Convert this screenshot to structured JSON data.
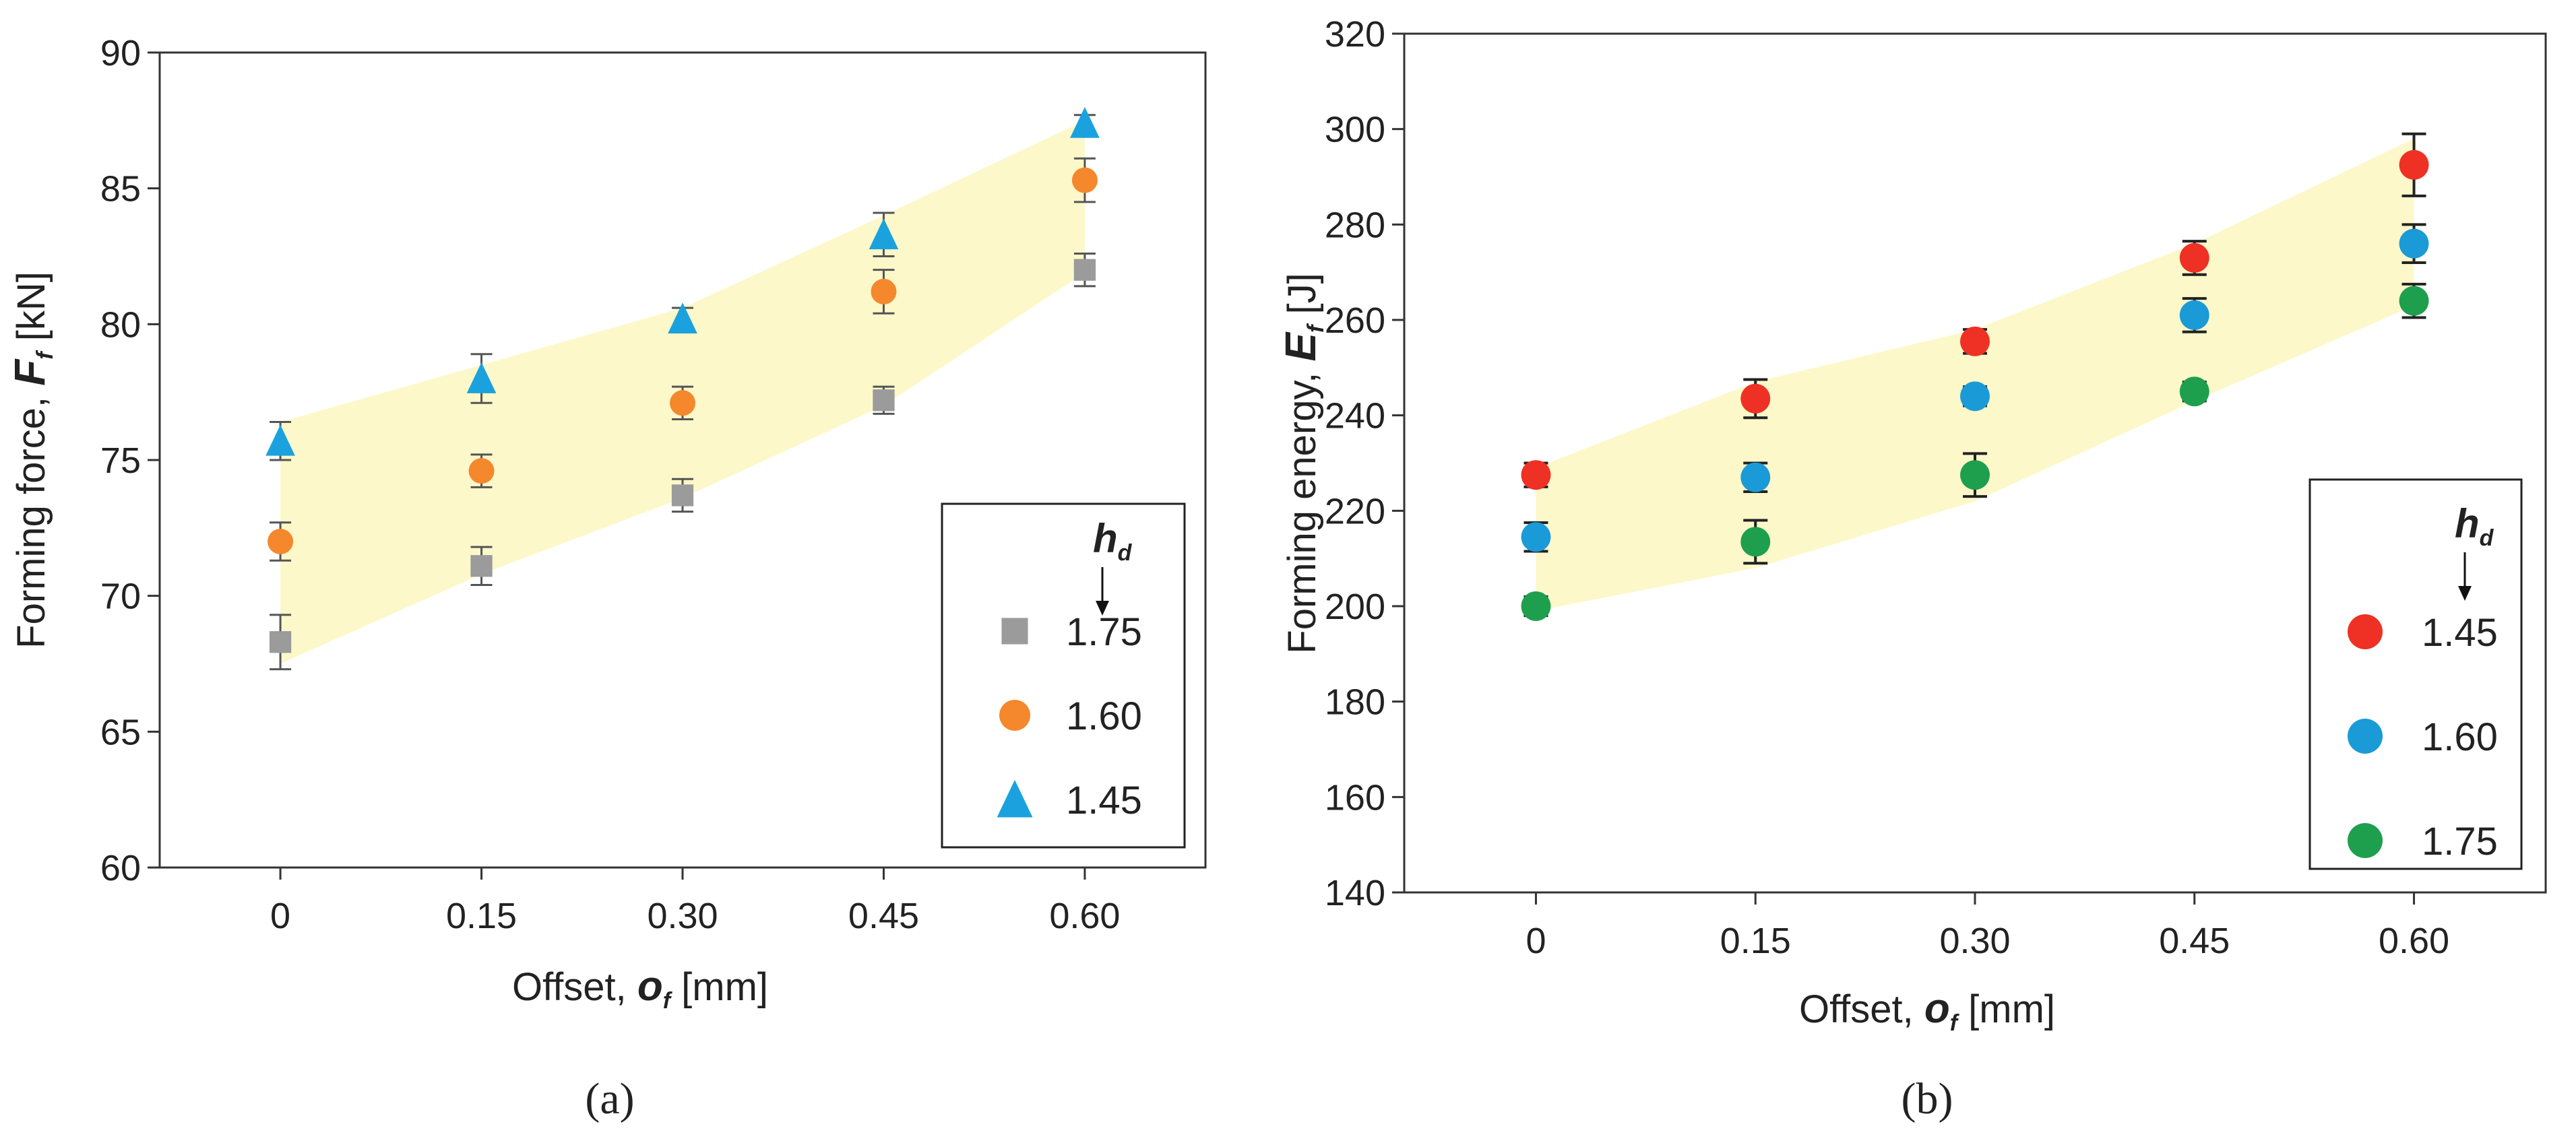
{
  "chart_data": [
    {
      "type": "scatter",
      "panel": "(a)",
      "ylabel_prefix": "Forming force, ",
      "ylabel_symbol": "F",
      "ylabel_sub": "f",
      "ylabel_unit": " [kN]",
      "xlabel_prefix": "Offset, ",
      "xlabel_symbol": "o",
      "xlabel_sub": "f",
      "xlabel_unit": " [mm]",
      "x_ticks": [
        "0",
        "0.15",
        "0.30",
        "0.45",
        "0.60"
      ],
      "x_values": [
        0,
        0.15,
        0.3,
        0.45,
        0.6
      ],
      "xlim": [
        -0.09,
        0.69
      ],
      "ylim": [
        60,
        90
      ],
      "y_ticks": [
        "60",
        "65",
        "70",
        "75",
        "80",
        "85",
        "90"
      ],
      "y_tick_values": [
        60,
        65,
        70,
        75,
        80,
        85,
        90
      ],
      "band": {
        "lower": [
          67.5,
          70.8,
          73.6,
          77.0,
          81.9
        ],
        "upper": [
          76.4,
          78.5,
          80.6,
          84.0,
          87.5
        ]
      },
      "legend_title_symbol": "h",
      "legend_title_sub": "d",
      "legend_position": "bottom-right",
      "series": [
        {
          "name": "1.75",
          "marker": "square",
          "color": "#9b9b9b",
          "values": [
            68.3,
            71.1,
            73.7,
            77.2,
            82.0
          ],
          "errors": [
            1.0,
            0.7,
            0.6,
            0.5,
            0.6
          ]
        },
        {
          "name": "1.60",
          "marker": "circle",
          "color": "#f5882d",
          "values": [
            72.0,
            74.6,
            77.1,
            81.2,
            85.3
          ],
          "errors": [
            0.7,
            0.6,
            0.6,
            0.8,
            0.8
          ]
        },
        {
          "name": "1.45",
          "marker": "triangle",
          "color": "#1ba2de",
          "values": [
            75.7,
            78.0,
            80.2,
            83.3,
            87.4
          ],
          "errors": [
            0.7,
            0.9,
            0.4,
            0.8,
            0.3
          ]
        }
      ]
    },
    {
      "type": "scatter",
      "panel": "(b)",
      "ylabel_prefix": "Forming energy, ",
      "ylabel_symbol": "E",
      "ylabel_sub": "f",
      "ylabel_unit": " [J]",
      "xlabel_prefix": "Offset, ",
      "xlabel_symbol": "o",
      "xlabel_sub": "f",
      "xlabel_unit": " [mm]",
      "x_ticks": [
        "0",
        "0.15",
        "0.30",
        "0.45",
        "0.60"
      ],
      "x_values": [
        0,
        0.15,
        0.3,
        0.45,
        0.6
      ],
      "xlim": [
        -0.09,
        0.69
      ],
      "ylim": [
        140,
        320
      ],
      "y_ticks": [
        "140",
        "160",
        "180",
        "200",
        "220",
        "240",
        "260",
        "280",
        "300",
        "320"
      ],
      "y_tick_values": [
        140,
        160,
        180,
        200,
        220,
        240,
        260,
        280,
        300,
        320
      ],
      "band": {
        "lower": [
          199,
          208,
          222,
          243,
          263
        ],
        "upper": [
          229,
          247,
          258,
          276,
          298
        ]
      },
      "legend_title_symbol": "h",
      "legend_title_sub": "d",
      "legend_position": "bottom-right",
      "series": [
        {
          "name": "1.45",
          "marker": "circle",
          "color": "#ee3124",
          "values": [
            227.5,
            243.5,
            255.5,
            273.0,
            292.5
          ],
          "errors": [
            2.5,
            4.0,
            2.5,
            3.5,
            6.5
          ]
        },
        {
          "name": "1.60",
          "marker": "circle",
          "color": "#1a9bd7",
          "values": [
            214.5,
            227.0,
            244.0,
            261.0,
            276.0
          ],
          "errors": [
            3.0,
            3.0,
            2.0,
            3.5,
            4.0
          ]
        },
        {
          "name": "1.75",
          "marker": "circle",
          "color": "#1e9f4e",
          "values": [
            200.0,
            213.5,
            227.5,
            245.0,
            264.0
          ],
          "errors": [
            2.0,
            4.5,
            4.5,
            2.0,
            3.5
          ]
        }
      ]
    }
  ]
}
